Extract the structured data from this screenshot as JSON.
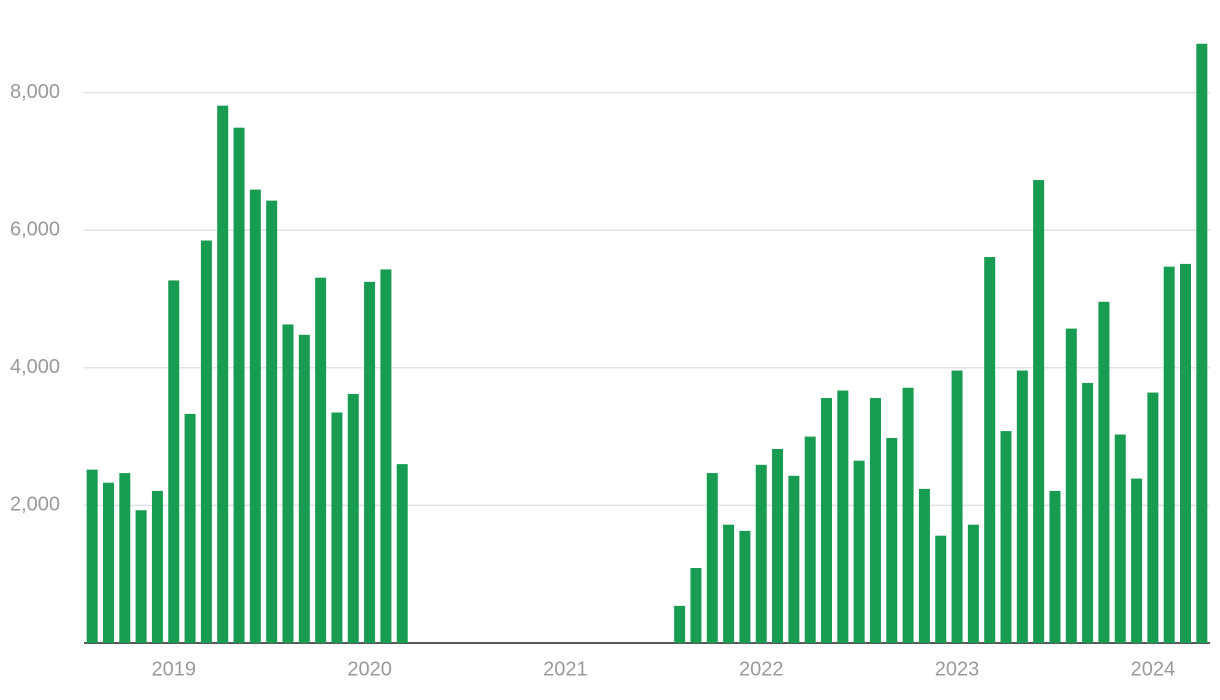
{
  "chart_data": {
    "type": "bar",
    "categories": [
      null,
      null,
      null,
      null,
      null,
      "2019",
      null,
      null,
      null,
      null,
      null,
      null,
      null,
      null,
      null,
      null,
      null,
      "2020",
      null,
      null,
      null,
      null,
      null,
      null,
      null,
      null,
      null,
      null,
      null,
      "2021",
      null,
      null,
      null,
      null,
      null,
      null,
      null,
      null,
      null,
      null,
      null,
      "2022",
      null,
      null,
      null,
      null,
      null,
      null,
      null,
      null,
      null,
      null,
      null,
      "2023",
      null,
      null,
      null,
      null,
      null,
      null,
      null,
      null,
      null,
      null,
      null,
      "2024",
      null,
      null,
      null
    ],
    "values": [
      2520,
      2330,
      2470,
      1930,
      2210,
      5270,
      3330,
      5850,
      7810,
      7490,
      6590,
      6430,
      4630,
      4480,
      5310,
      3350,
      3620,
      5250,
      5430,
      2600,
      null,
      null,
      null,
      null,
      null,
      null,
      null,
      null,
      null,
      null,
      null,
      null,
      null,
      null,
      null,
      null,
      540,
      1090,
      2470,
      1720,
      1630,
      2590,
      2820,
      2430,
      3000,
      3560,
      3670,
      2650,
      3560,
      2980,
      3710,
      2240,
      1560,
      3960,
      1720,
      5610,
      3080,
      3960,
      6730,
      2210,
      4570,
      3780,
      4960,
      3030,
      2390,
      3640,
      5470,
      5510,
      8710
    ],
    "color": "#179c52",
    "ylim": [
      0,
      8750
    ],
    "yticks": [
      {
        "value": 2000,
        "label": "2,000"
      },
      {
        "value": 4000,
        "label": "4,000"
      },
      {
        "value": 6000,
        "label": "6,000"
      },
      {
        "value": 8000,
        "label": "8,000"
      }
    ],
    "grid": true
  }
}
